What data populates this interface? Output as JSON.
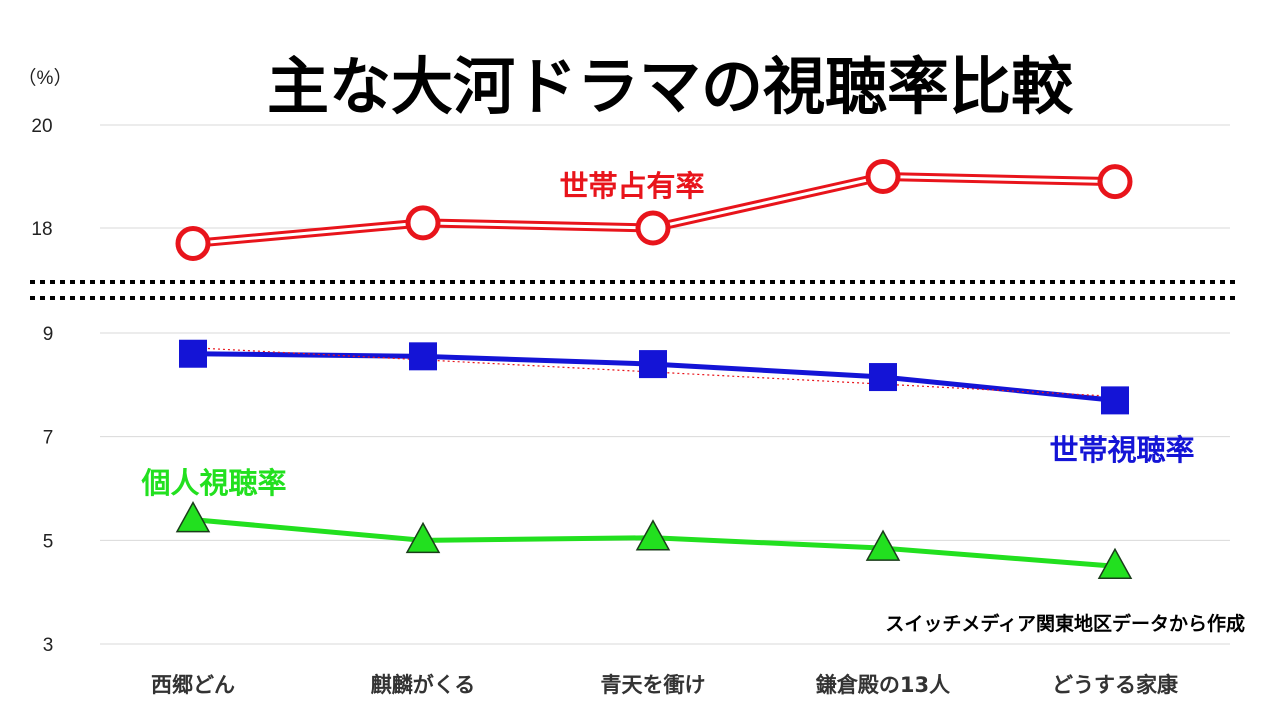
{
  "chart_data": {
    "type": "line",
    "title": "主な大河ドラマの視聴率比較",
    "unit": "（%）",
    "note": "スイッチメディア関東地区データから作成",
    "categories": [
      "西郷どん",
      "麒麟がくる",
      "青天を衝け",
      "鎌倉殿の13人",
      "どうする家康"
    ],
    "y_ticks_upper": [
      "20",
      "18"
    ],
    "y_ticks_lower": [
      "9",
      "7",
      "5",
      "3"
    ],
    "upper_range": [
      17,
      20
    ],
    "lower_range": [
      3,
      9.5
    ],
    "axis_break": true,
    "grid": true,
    "series": [
      {
        "name": "世帯占有率",
        "panel": "upper",
        "marker": "circle",
        "color": "#e8141b",
        "values": [
          17.7,
          18.1,
          18.0,
          19.0,
          18.9
        ]
      },
      {
        "name": "世帯視聴率",
        "panel": "lower",
        "marker": "square",
        "color": "#1414d6",
        "values": [
          8.6,
          8.55,
          8.4,
          8.15,
          7.7
        ]
      },
      {
        "name": "個人視聴率",
        "panel": "lower",
        "marker": "triangle",
        "color": "#22e01f",
        "values": [
          5.4,
          5.0,
          5.05,
          4.85,
          4.5
        ]
      }
    ],
    "trendline": {
      "series": "世帯視聴率",
      "style": "dotted",
      "color": "#e8141b"
    }
  }
}
